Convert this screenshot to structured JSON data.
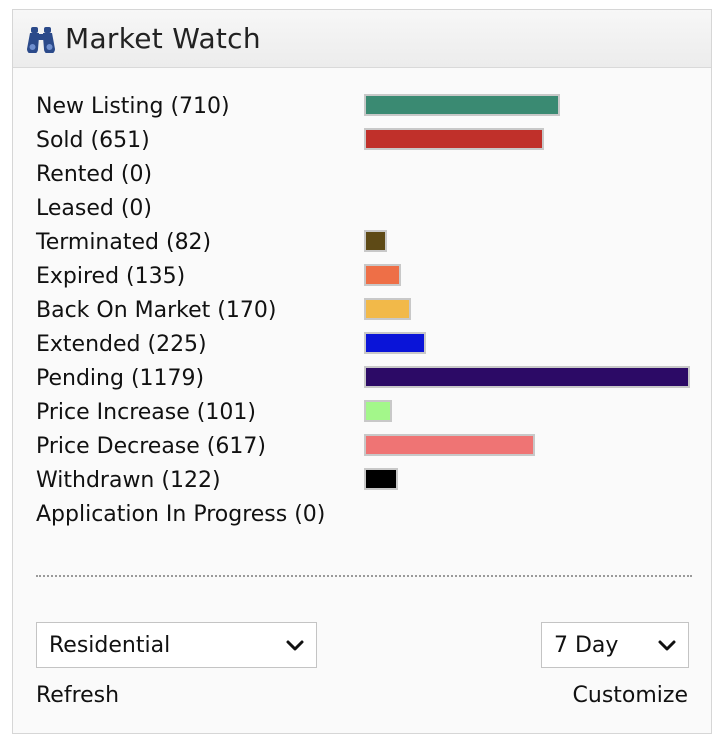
{
  "widget": {
    "title": "Market Watch",
    "icon": "binoculars-icon",
    "icon_color": "#2b4a8a"
  },
  "rows": [
    {
      "label": "New Listing (710)",
      "count": 710,
      "color": "#3a8a72"
    },
    {
      "label": "Sold (651)",
      "count": 651,
      "color": "#c0302a"
    },
    {
      "label": "Rented (0)",
      "count": 0,
      "color": ""
    },
    {
      "label": "Leased (0)",
      "count": 0,
      "color": ""
    },
    {
      "label": "Terminated (82)",
      "count": 82,
      "color": "#5e4a16"
    },
    {
      "label": "Expired (135)",
      "count": 135,
      "color": "#ee6f47"
    },
    {
      "label": "Back On Market (170)",
      "count": 170,
      "color": "#f2b949"
    },
    {
      "label": "Extended (225)",
      "count": 225,
      "color": "#0a14d8"
    },
    {
      "label": "Pending (1179)",
      "count": 1179,
      "color": "#2c0a66"
    },
    {
      "label": "Price Increase (101)",
      "count": 101,
      "color": "#a3f78a"
    },
    {
      "label": "Price Decrease (617)",
      "count": 617,
      "color": "#ef7474"
    },
    {
      "label": "Withdrawn (122)",
      "count": 122,
      "color": "#000000"
    },
    {
      "label": "Application In Progress (0)",
      "count": 0,
      "color": ""
    }
  ],
  "controls": {
    "property_type": "Residential",
    "period": "7 Day",
    "refresh_label": "Refresh",
    "customize_label": "Customize"
  }
}
